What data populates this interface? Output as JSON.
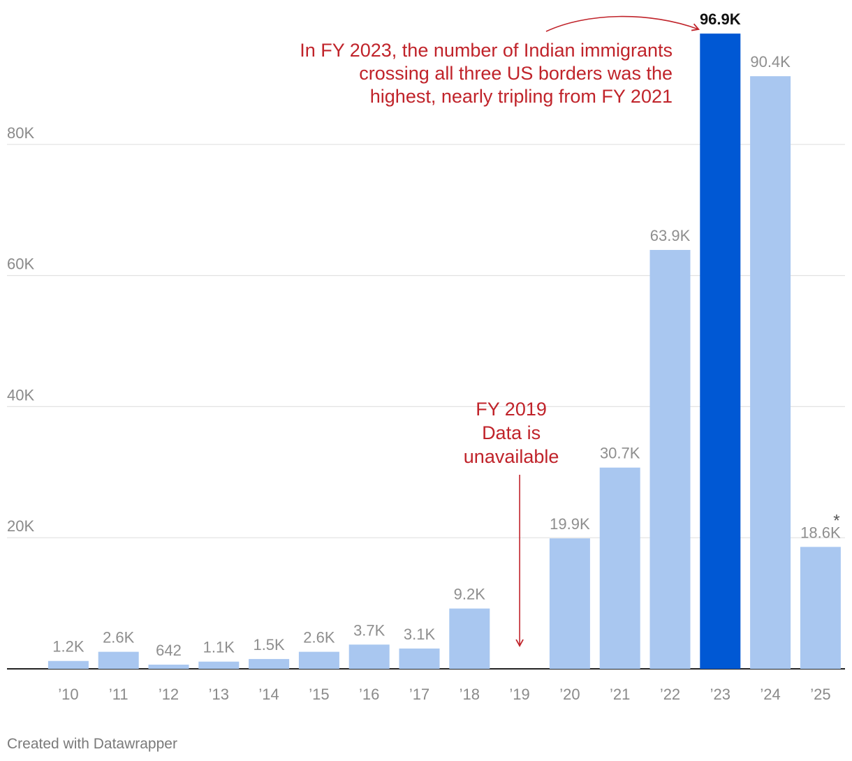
{
  "chart_data": {
    "type": "bar",
    "title": "",
    "xlabel": "",
    "ylabel": "",
    "ylim": [
      0,
      100000
    ],
    "yticks": [
      20000,
      40000,
      60000,
      80000
    ],
    "ytick_labels": [
      "20K",
      "40K",
      "60K",
      "80K"
    ],
    "grid": true,
    "categories": [
      "’10",
      "’11",
      "’12",
      "’13",
      "’14",
      "’15",
      "’16",
      "’17",
      "’18",
      "’19",
      "’20",
      "’21",
      "’22",
      "’23",
      "’24",
      "’25"
    ],
    "values": [
      1200,
      2600,
      642,
      1100,
      1500,
      2600,
      3700,
      3100,
      9200,
      null,
      19900,
      30700,
      63900,
      96900,
      90400,
      18600
    ],
    "value_labels": [
      "1.2K",
      "2.6K",
      "642",
      "1.1K",
      "1.5K",
      "2.6K",
      "3.7K",
      "3.1K",
      "9.2K",
      "",
      "19.9K",
      "30.7K",
      "63.9K",
      "96.9K",
      "90.4K",
      "18.6K"
    ],
    "highlight_category": "’23",
    "footnote_marker": "*",
    "footnote_category": "’25",
    "annotations": [
      {
        "target": "’23",
        "lines": [
          "In FY 2023, the number of Indian immigrants",
          "crossing all three US borders was the",
          "highest, nearly tripling from FY 2021"
        ]
      },
      {
        "target": "’19",
        "lines": [
          "FY 2019",
          "Data is",
          "unavailable"
        ]
      }
    ]
  },
  "colors": {
    "bar": "#a9c7f0",
    "highlight": "#0058d4",
    "annotation": "#c0232a",
    "grid": "#e2e2e2",
    "axis": "#222222",
    "tick_text": "#8a8a8a",
    "value_text": "#8e8e8e",
    "highlight_text": "#111111"
  },
  "footer": {
    "credit": "Created with Datawrapper"
  }
}
